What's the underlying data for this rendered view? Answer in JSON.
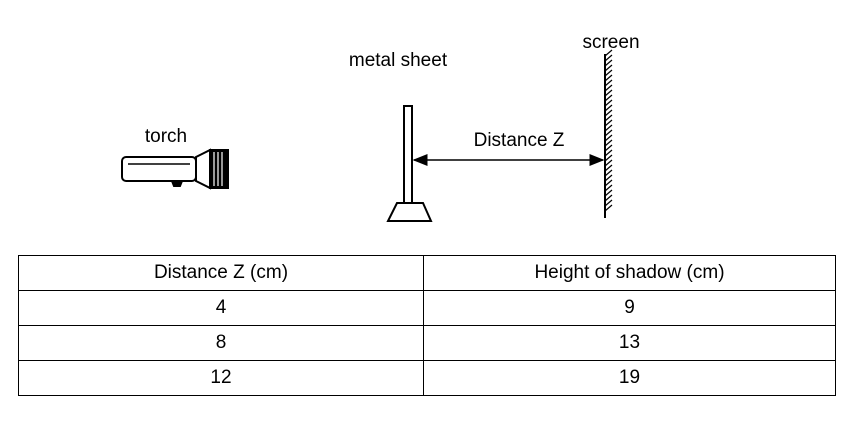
{
  "diagram": {
    "labels": {
      "torch": "torch",
      "metal_sheet": "metal sheet",
      "screen": "screen",
      "distance": "Distance Z"
    }
  },
  "table": {
    "headers": [
      "Distance Z (cm)",
      "Height of shadow (cm)"
    ],
    "rows": [
      [
        "4",
        "9"
      ],
      [
        "8",
        "13"
      ],
      [
        "12",
        "19"
      ]
    ]
  },
  "chart_data": {
    "type": "table",
    "columns": [
      "Distance Z (cm)",
      "Height of shadow (cm)"
    ],
    "x": [
      4,
      8,
      12
    ],
    "y": [
      9,
      13,
      19
    ]
  }
}
